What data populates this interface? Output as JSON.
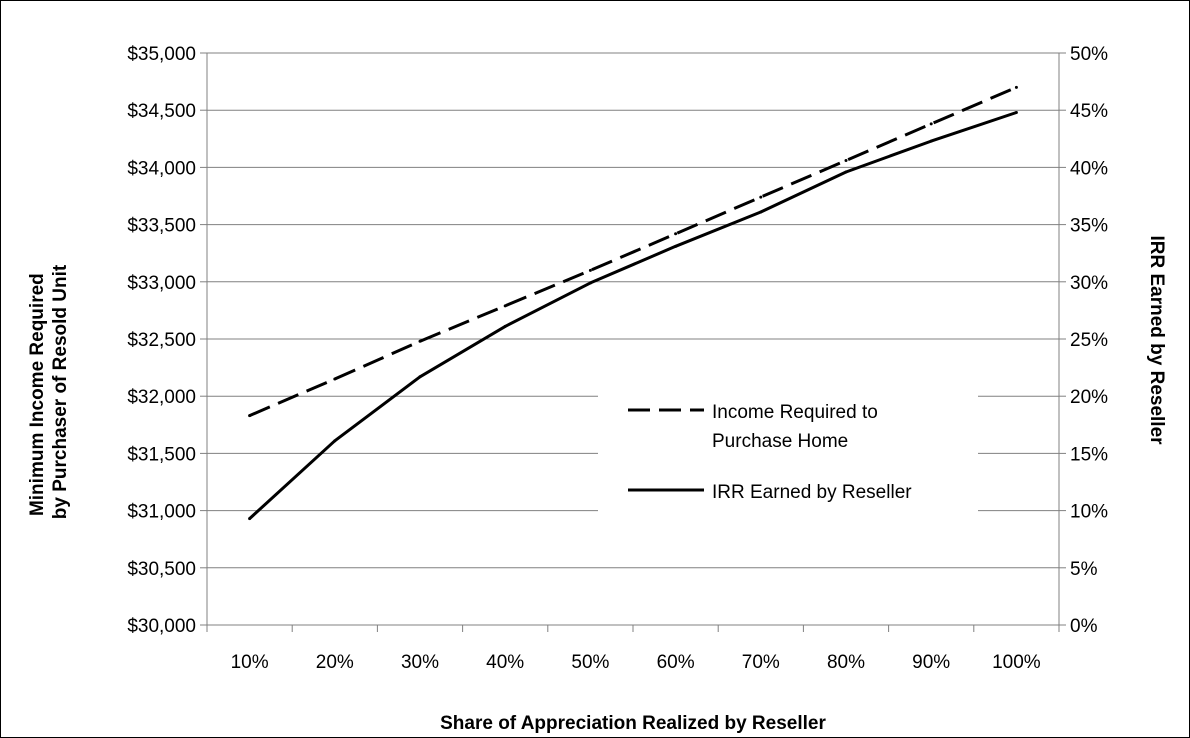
{
  "chart_data": {
    "type": "line",
    "xlabel": "Share of Appreciation Realized by Reseller",
    "ylabel": "Minimum Income Required by Purchaser of Resold Unit",
    "ylabel_lines": [
      "Minimum Income Required",
      "by Purchaser of Resold Unit"
    ],
    "y2label": "IRR Earned by Reseller",
    "categories": [
      "10%",
      "20%",
      "30%",
      "40%",
      "50%",
      "60%",
      "70%",
      "80%",
      "90%",
      "100%"
    ],
    "y_ticks": [
      "$30,000",
      "$30,500",
      "$31,000",
      "$31,500",
      "$32,000",
      "$32,500",
      "$33,000",
      "$33,500",
      "$34,000",
      "$34,500",
      "$35,000"
    ],
    "y2_ticks": [
      "0%",
      "5%",
      "10%",
      "15%",
      "20%",
      "25%",
      "30%",
      "35%",
      "40%",
      "45%",
      "50%"
    ],
    "ylim": [
      30000,
      35000
    ],
    "y2lim": [
      0,
      50
    ],
    "grid": "horizontal",
    "legend_position": "center-right",
    "series": [
      {
        "name": "Income Required to Purchase Home",
        "legend_lines": [
          "Income Required to",
          "Purchase Home"
        ],
        "axis": "left",
        "style": "dashed",
        "values": [
          31830,
          32150,
          32480,
          32790,
          33100,
          33420,
          33740,
          34060,
          34380,
          34700
        ]
      },
      {
        "name": "IRR Earned by Reseller",
        "legend_lines": [
          "IRR Earned by Reseller"
        ],
        "axis": "right",
        "style": "solid",
        "values": [
          9.3,
          16.1,
          21.7,
          26.1,
          29.9,
          33.1,
          36.1,
          39.6,
          42.3,
          44.8
        ]
      }
    ]
  },
  "colors": {
    "line": "#000000",
    "grid": "#808080",
    "background": "#ffffff"
  }
}
